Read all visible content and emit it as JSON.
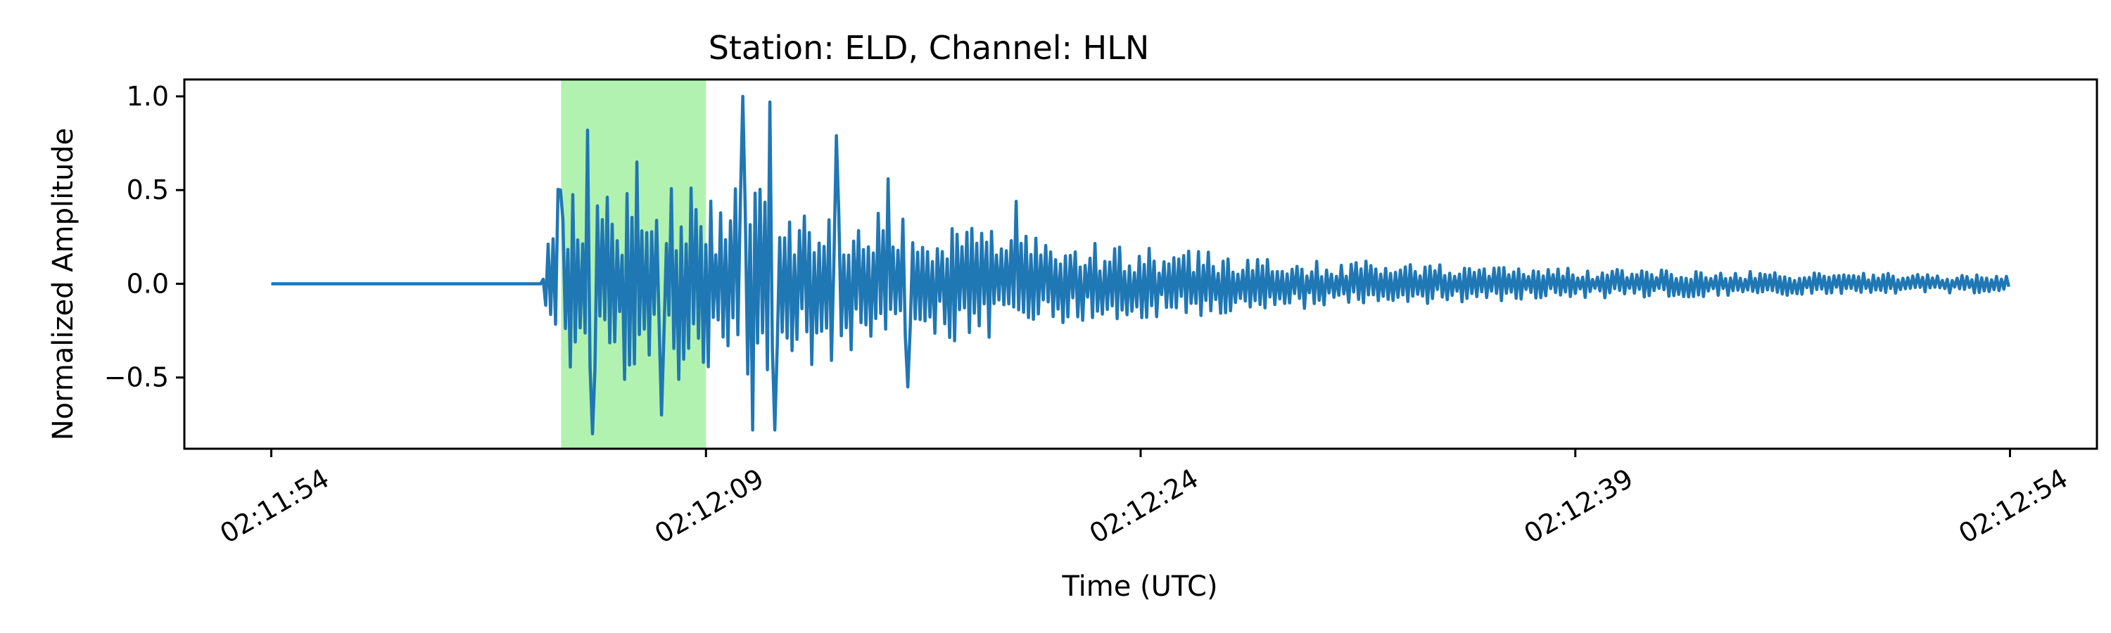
{
  "chart_data": {
    "type": "line",
    "title": "Station: ELD, Channel: HLN",
    "xlabel": "Time (UTC)",
    "ylabel": "Normalized Amplitude",
    "x_start": "02:11:54",
    "x_end": "02:12:54",
    "xlim": [
      "02:11:51",
      "02:12:57"
    ],
    "xticks": [
      "02:11:54",
      "02:12:09",
      "02:12:24",
      "02:12:39",
      "02:12:54"
    ],
    "ylim": [
      -0.88,
      1.09
    ],
    "yticks": [
      {
        "value": 1.0,
        "label": "1.0"
      },
      {
        "value": 0.5,
        "label": "0.5"
      },
      {
        "value": 0.0,
        "label": "0.0"
      },
      {
        "value": -0.5,
        "label": "−0.5"
      }
    ],
    "grid": false,
    "highlight": {
      "start": "02:12:04",
      "end": "02:12:09",
      "color": "#b2f2b0"
    },
    "series": [
      {
        "color": "#1f77b4",
        "onset": "02:12:03.3",
        "peaks": [
          {
            "t": "02:12:04.0",
            "v": 0.5
          },
          {
            "t": "02:12:04.9",
            "v": 0.82
          },
          {
            "t": "02:12:05.1",
            "v": -0.8
          },
          {
            "t": "02:12:06.6",
            "v": 0.65
          },
          {
            "t": "02:12:07.5",
            "v": -0.7
          },
          {
            "t": "02:12:10.3",
            "v": 1.0
          },
          {
            "t": "02:12:11.2",
            "v": 0.97
          },
          {
            "t": "02:12:10.6",
            "v": -0.78
          },
          {
            "t": "02:12:11.4",
            "v": -0.78
          },
          {
            "t": "02:12:13.5",
            "v": 0.79
          },
          {
            "t": "02:12:15.3",
            "v": 0.56
          },
          {
            "t": "02:12:16.0",
            "v": -0.55
          },
          {
            "t": "02:12:19.7",
            "v": 0.44
          }
        ]
      }
    ]
  }
}
